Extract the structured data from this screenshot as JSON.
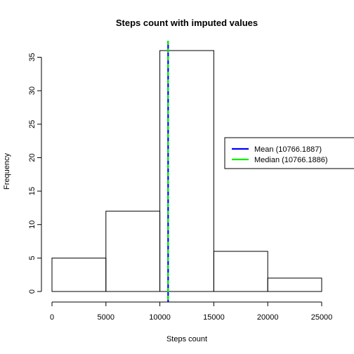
{
  "chart_data": {
    "type": "bar",
    "title": "Steps count with imputed values",
    "xlabel": "Steps count",
    "ylabel": "Frequency",
    "bins": [
      {
        "x0": 0,
        "x1": 5000,
        "count": 5
      },
      {
        "x0": 5000,
        "x1": 10000,
        "count": 12
      },
      {
        "x0": 10000,
        "x1": 15000,
        "count": 36
      },
      {
        "x0": 15000,
        "x1": 20000,
        "count": 6
      },
      {
        "x0": 20000,
        "x1": 25000,
        "count": 2
      }
    ],
    "xlim": [
      0,
      25000
    ],
    "ylim": [
      0,
      36
    ],
    "xticks": [
      0,
      5000,
      10000,
      15000,
      20000,
      25000
    ],
    "yticks": [
      0,
      5,
      10,
      15,
      20,
      25,
      30,
      35
    ],
    "grid": false,
    "legend_position": "right",
    "vlines": [
      {
        "name": "Mean (10766.1887)",
        "value": 10766.1887,
        "color": "#0000ff",
        "style": "solid"
      },
      {
        "name": "Median (10766.1886)",
        "value": 10766.1886,
        "color": "#00ee00",
        "style": "dashed"
      }
    ]
  }
}
